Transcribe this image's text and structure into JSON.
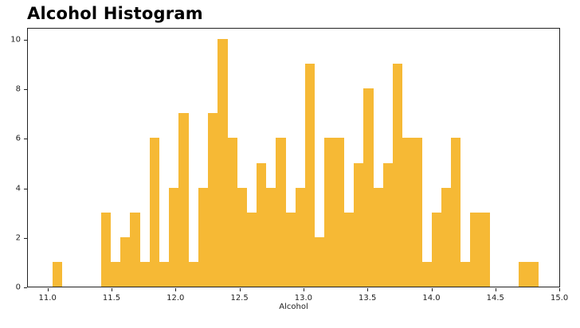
{
  "title": "Alcohol Histogram",
  "xlabel": "Alcohol",
  "colors": {
    "bar": "#F6B935",
    "axis": "#222222"
  },
  "x_ticks": [
    "11.0",
    "11.5",
    "12.0",
    "12.5",
    "13.0",
    "13.5",
    "14.0",
    "14.5",
    "15.0"
  ],
  "y_ticks": [
    "0",
    "2",
    "4",
    "6",
    "8",
    "10"
  ],
  "chart_data": {
    "type": "bar",
    "title": "Alcohol Histogram",
    "xlabel": "Alcohol",
    "ylabel": "",
    "bins": 50,
    "bin_start": 11.03,
    "bin_width": 0.076,
    "xlim": [
      10.84,
      15.02
    ],
    "ylim": [
      0,
      10.5
    ],
    "x_ticks": [
      11.0,
      11.5,
      12.0,
      12.5,
      13.0,
      13.5,
      14.0,
      14.5,
      15.0
    ],
    "y_ticks": [
      0,
      2,
      4,
      6,
      8,
      10
    ],
    "grid": false,
    "legend": null,
    "values": [
      1,
      0,
      0,
      0,
      0,
      3,
      1,
      2,
      3,
      1,
      6,
      1,
      4,
      7,
      1,
      4,
      7,
      10,
      6,
      4,
      3,
      5,
      4,
      6,
      3,
      4,
      9,
      2,
      6,
      6,
      3,
      5,
      8,
      4,
      5,
      9,
      6,
      6,
      1,
      3,
      4,
      6,
      1,
      3,
      3,
      0,
      0,
      0,
      1,
      1
    ],
    "total_count": 178
  }
}
